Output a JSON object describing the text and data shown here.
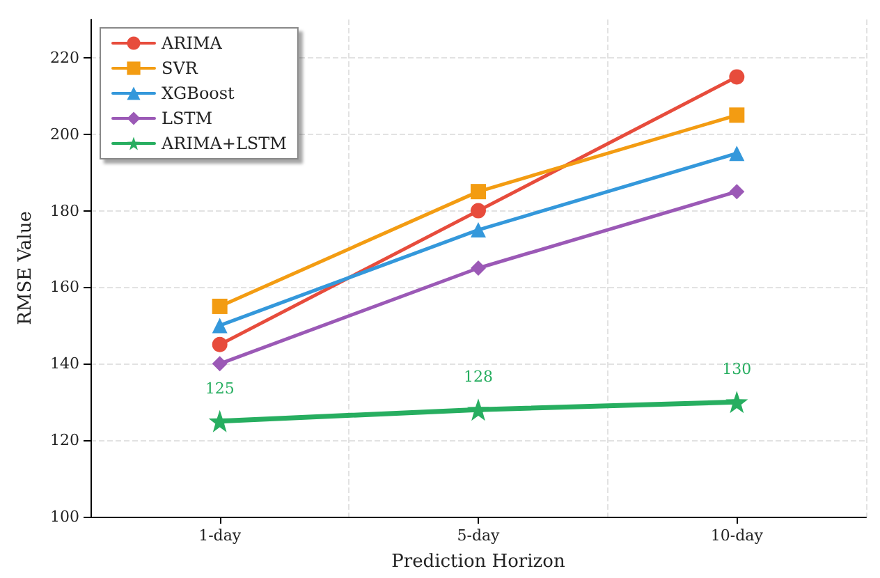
{
  "chart_data": {
    "type": "line",
    "xlabel": "Prediction Horizon",
    "ylabel": "RMSE Value",
    "categories": [
      "1-day",
      "5-day",
      "10-day"
    ],
    "series": [
      {
        "name": "ARIMA",
        "color": "#e74c3c",
        "marker": "circle",
        "values": [
          145,
          180,
          215
        ]
      },
      {
        "name": "SVR",
        "color": "#f39c12",
        "marker": "square",
        "values": [
          155,
          185,
          205
        ]
      },
      {
        "name": "XGBoost",
        "color": "#3498db",
        "marker": "triangle",
        "values": [
          150,
          175,
          195
        ]
      },
      {
        "name": "LSTM",
        "color": "#9b59b6",
        "marker": "diamond",
        "values": [
          140,
          165,
          185
        ]
      },
      {
        "name": "ARIMA+LSTM",
        "color": "#27ae60",
        "marker": "star",
        "values": [
          125,
          128,
          130
        ],
        "value_labels": [
          "125",
          "128",
          "130"
        ]
      }
    ],
    "ylim": [
      100,
      230
    ],
    "yticks": [
      100,
      120,
      140,
      160,
      180,
      200,
      220
    ],
    "grid": true,
    "legend": "top left"
  }
}
